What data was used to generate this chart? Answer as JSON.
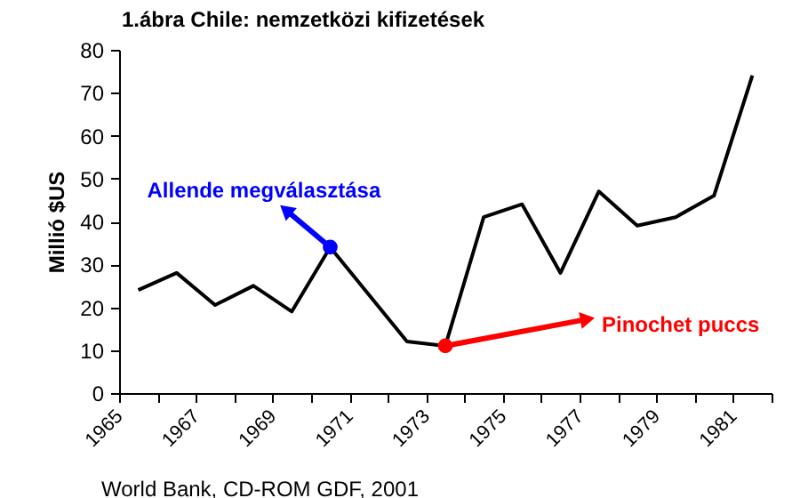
{
  "chart_data": {
    "type": "line",
    "title": "1.ábra      Chile: nemzetközi kifizetések",
    "ylabel": "Millió    $US",
    "x": [
      1965.5,
      1966.5,
      1967.5,
      1968.5,
      1969.5,
      1970.5,
      1971.5,
      1972.5,
      1973.5,
      1974.5,
      1975.5,
      1976.5,
      1977.5,
      1978.5,
      1979.5,
      1980.5,
      1981.5
    ],
    "series": [
      {
        "color": "#000000",
        "values": [
          24,
          28,
          20.5,
          25,
          19,
          34,
          23,
          12,
          11,
          41,
          44,
          28,
          47,
          39,
          41,
          46,
          74
        ]
      },
      {
        "type": "scatter",
        "marker": "circle",
        "x": [
          1970.5,
          1973.5
        ],
        "colors": [
          "#0000ff",
          "#ff0000"
        ],
        "values": [
          34,
          11
        ]
      }
    ],
    "annotations": [
      {
        "text": "Allende megválasztása",
        "x": 1970.5,
        "y": 34
      },
      {
        "text": "Pinochet puccs",
        "x": 1973.5,
        "y": 11
      },
      "World Bank, CD-ROM GDF, 2001"
    ],
    "xlim": [
      1965,
      1982
    ],
    "xticks": [
      1965,
      {
        "value": 1966,
        "label": null
      },
      1967,
      {
        "value": 1968,
        "label": null
      },
      1969,
      {
        "value": 1970,
        "label": null
      },
      1971,
      {
        "value": 1972,
        "label": null
      },
      1973,
      {
        "value": 1974,
        "label": null
      },
      1975,
      {
        "value": 1976,
        "label": null
      },
      1977,
      {
        "value": 1978,
        "label": null
      },
      1979,
      {
        "value": 1980,
        "label": null
      },
      1981,
      {
        "value": 1982,
        "label": null
      }
    ],
    "ylim": [
      0,
      80
    ],
    "yticks": [
      0,
      10,
      20,
      30,
      40,
      50,
      60,
      70,
      80
    ],
    "grid": false,
    "legend": false,
    "marker": "none",
    "line_style": "solid"
  }
}
